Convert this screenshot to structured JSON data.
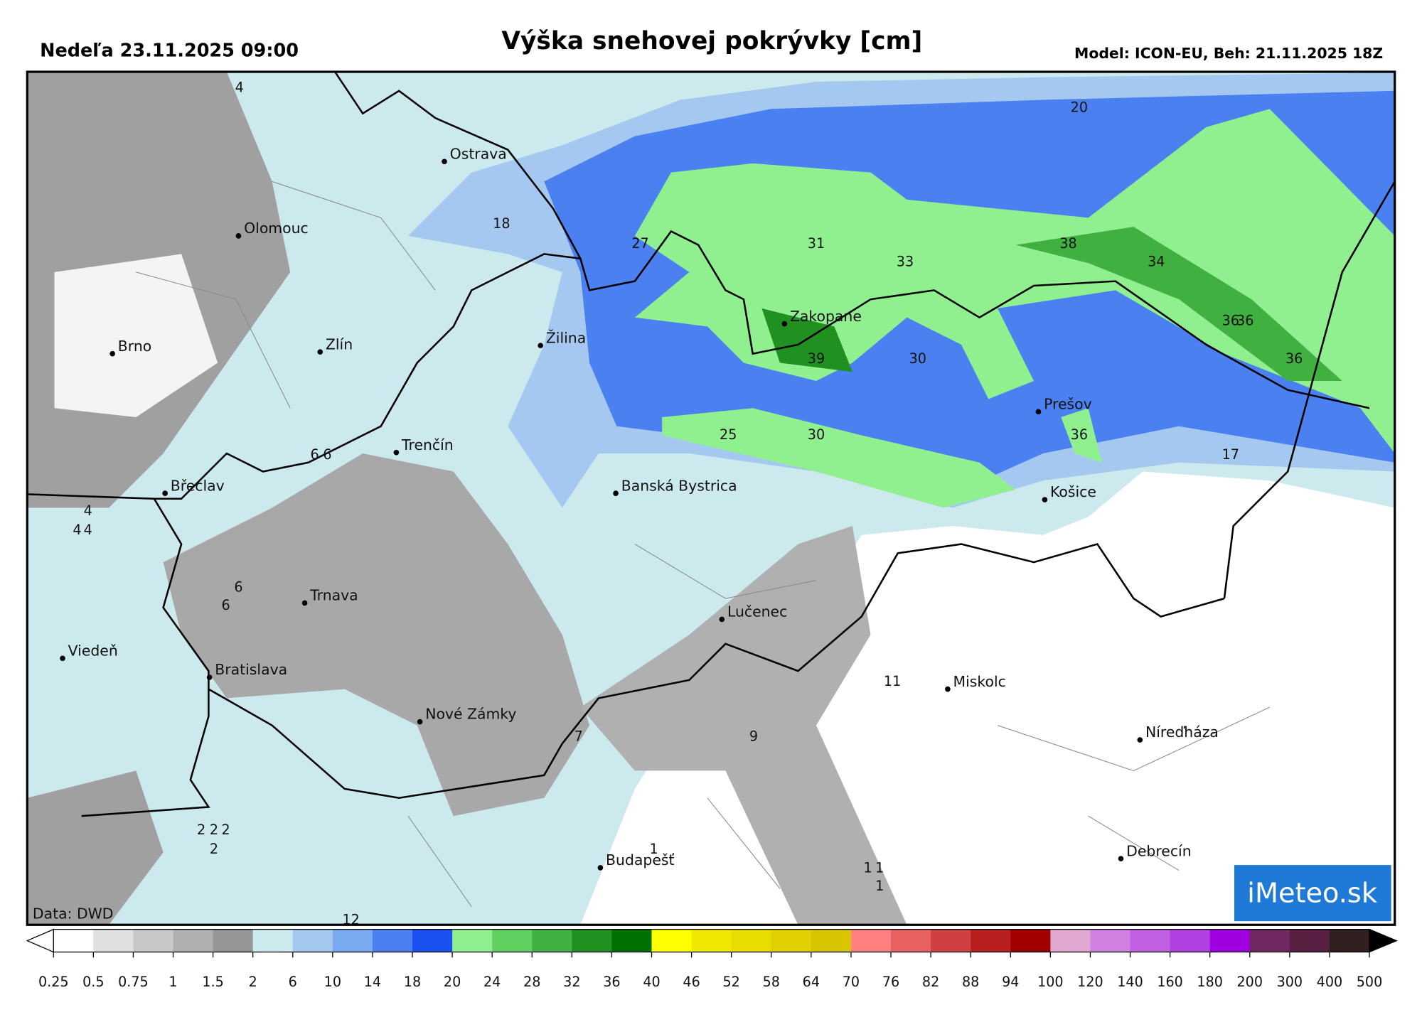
{
  "header": {
    "left": "Nedeľa 23.11.2025 09:00",
    "title": "Výška snehovej pokrývky [cm]",
    "right": "Model: ICON-EU, Beh: 21.11.2025 18Z"
  },
  "map": {
    "cities": [
      "Ostrava",
      "Olomouc",
      "Brno",
      "Zlín",
      "Žilina",
      "Zakopane",
      "Trenčín",
      "Břeclav",
      "Prešov",
      "Košice",
      "Banská Bystrica",
      "Trnava",
      "Lučenec",
      "Viedeň",
      "Bratislava",
      "Nové Zámky",
      "Miskolc",
      "Níreďháza",
      "Budapešť",
      "Debrecín"
    ],
    "labels": [
      4,
      18,
      27,
      31,
      33,
      38,
      34,
      20,
      36,
      36,
      36,
      30,
      39,
      25,
      30,
      36,
      17,
      6,
      6,
      4,
      4,
      4,
      6,
      6,
      11,
      7,
      9,
      2,
      2,
      2,
      2,
      1,
      1,
      1,
      1,
      12
    ],
    "source": "Data: DWD",
    "logo": "iMeteo.sk"
  },
  "colorbar": {
    "ticks": [
      0.25,
      0.5,
      0.75,
      1,
      1.5,
      2,
      6,
      10,
      14,
      18,
      20,
      24,
      28,
      32,
      36,
      40,
      46,
      52,
      58,
      64,
      70,
      76,
      82,
      88,
      94,
      100,
      120,
      140,
      160,
      180,
      200,
      300,
      400,
      500
    ],
    "colors": [
      "#ffffff",
      "#e0e0e0",
      "#c8c8c8",
      "#b0b0b0",
      "#969696",
      "#cce9ee",
      "#a5c8f0",
      "#7aaaf0",
      "#4a80f0",
      "#1a50f0",
      "#90f090",
      "#60d060",
      "#40b040",
      "#209020",
      "#007000",
      "#ffff00",
      "#f0e800",
      "#e8dc00",
      "#e0d000",
      "#d8c400",
      "#ff8080",
      "#e86060",
      "#d04040",
      "#b82020",
      "#a00000",
      "#e0a8d0",
      "#d080e0",
      "#c060e0",
      "#b040e0",
      "#a000e0",
      "#702860",
      "#582040",
      "#302020"
    ]
  }
}
